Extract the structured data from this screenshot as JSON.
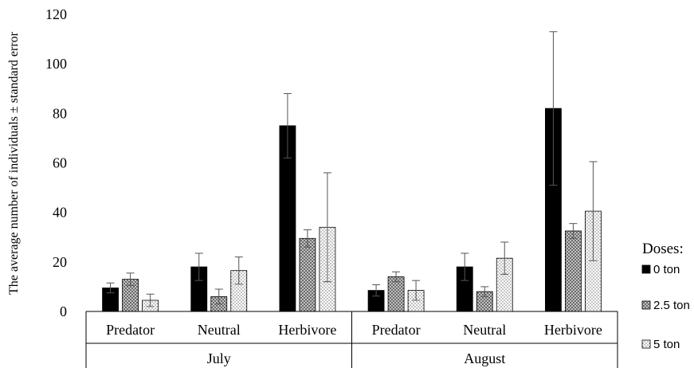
{
  "chart_data": {
    "type": "bar",
    "title": "",
    "xlabel": "",
    "ylabel": "The average number of individuals  ± standard error",
    "ylim": [
      0,
      120
    ],
    "yticks": [
      0,
      20,
      40,
      60,
      80,
      100,
      120
    ],
    "grid": false,
    "legend_position": "right",
    "legend_title": "Doses:",
    "groups": [
      {
        "label": "July",
        "categories": [
          "Predator",
          "Neutral",
          "Herbivore"
        ]
      },
      {
        "label": "August",
        "categories": [
          "Predator",
          "Neutral",
          "Herbivore"
        ]
      }
    ],
    "series": [
      {
        "name": "0 ton",
        "pattern": "solid",
        "color": "#000000",
        "values": [
          9.5,
          18,
          75,
          8.5,
          18,
          82
        ],
        "errors": [
          2,
          5.5,
          13,
          2.3,
          5.5,
          31
        ]
      },
      {
        "name": "2.5 ton",
        "pattern": "crosshatch",
        "color": "#999999",
        "values": [
          13,
          6,
          29.5,
          14,
          8,
          32.5
        ],
        "errors": [
          2.5,
          3,
          3.5,
          2,
          2,
          3
        ]
      },
      {
        "name": "5 ton",
        "pattern": "dotted",
        "color": "#ffffff",
        "values": [
          4.5,
          16.5,
          34,
          8.5,
          21.5,
          40.5
        ],
        "errors": [
          2.5,
          5.5,
          22,
          4,
          6.5,
          20
        ]
      }
    ]
  }
}
